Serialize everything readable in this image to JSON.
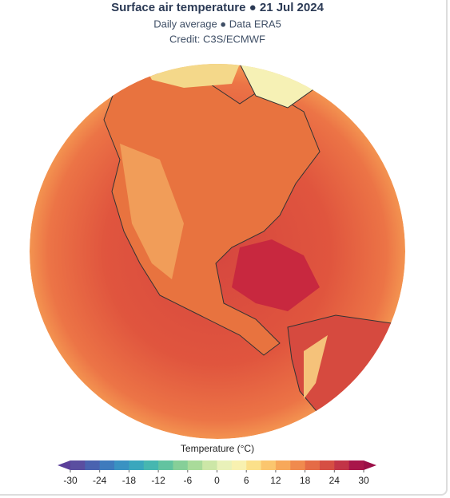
{
  "header": {
    "title": "Surface air temperature ● 21 Jul 2024",
    "subtitle": "Daily average ● Data ERA5",
    "credit": "Credit: C3S/ECMWF"
  },
  "legend": {
    "title": "Temperature (°C)",
    "ticks": [
      -30,
      -24,
      -18,
      -12,
      -6,
      0,
      6,
      12,
      18,
      24,
      30
    ]
  }
}
